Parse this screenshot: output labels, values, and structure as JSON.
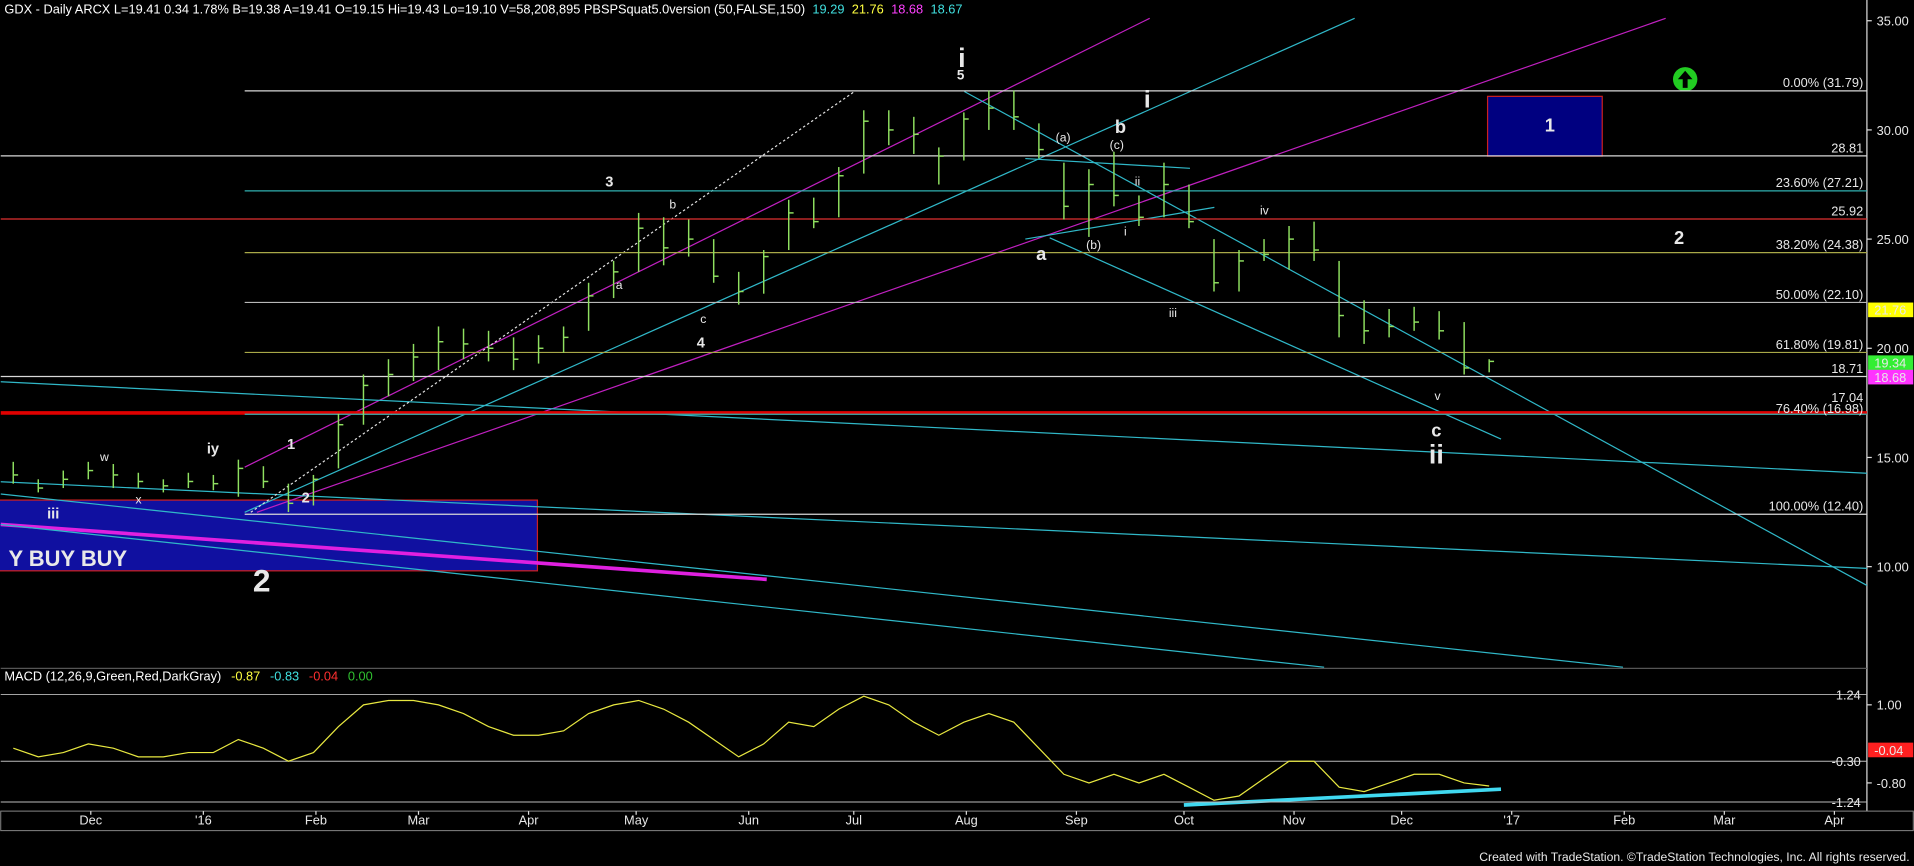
{
  "chart_data": {
    "type": "ohlc",
    "header": [
      {
        "text": "GDX - Daily ARCX L=19.41 0.34 1.78% B=19.38 A=19.41 O=19.15 Hi=19.43 Lo=19.10 V=58,208,895 PBSPSquat5.0version (50,FALSE,150)",
        "color": "#ffffff"
      },
      {
        "text": "19.29",
        "color": "#40e0e0"
      },
      {
        "text": "21.76",
        "color": "#ffff40"
      },
      {
        "text": "18.68",
        "color": "#ff40ff"
      },
      {
        "text": "18.67",
        "color": "#40e0e0"
      }
    ],
    "color": "#8fe060",
    "high": [
      14.8,
      14.0,
      14.4,
      14.8,
      14.7,
      14.3,
      14.0,
      14.3,
      14.2,
      14.9,
      14.6,
      13.8,
      14.2,
      17.0,
      18.8,
      19.5,
      20.2,
      21.0,
      20.9,
      20.8,
      20.5,
      20.6,
      21.0,
      23.0,
      24.0,
      26.2,
      26.0,
      25.9,
      25.0,
      23.5,
      24.5,
      26.8,
      26.9,
      28.3,
      30.9,
      30.9,
      30.6,
      29.2,
      30.8,
      31.8,
      31.8,
      30.3,
      28.5,
      28.2,
      29.0,
      27.0,
      28.5,
      27.5,
      25.0,
      24.5,
      25.0,
      25.6,
      25.8,
      24.0,
      22.2,
      21.8,
      21.9,
      21.7,
      21.2,
      19.5
    ],
    "low": [
      13.8,
      13.4,
      13.6,
      14.0,
      13.6,
      13.6,
      13.4,
      13.6,
      13.5,
      13.2,
      13.6,
      12.5,
      12.8,
      14.5,
      16.5,
      17.8,
      18.5,
      19.0,
      19.5,
      19.4,
      19.0,
      19.3,
      19.8,
      20.8,
      22.3,
      23.5,
      23.8,
      24.2,
      23.0,
      22.0,
      22.5,
      24.5,
      25.5,
      26.0,
      28.0,
      29.3,
      28.9,
      27.5,
      28.6,
      30.0,
      30.0,
      28.7,
      25.9,
      25.1,
      26.5,
      25.6,
      26.0,
      25.5,
      22.6,
      22.6,
      24.0,
      23.6,
      24.0,
      20.5,
      20.2,
      20.5,
      20.8,
      20.4,
      18.8,
      18.9
    ],
    "close": [
      14.2,
      13.6,
      14.0,
      14.4,
      14.2,
      13.9,
      13.7,
      13.9,
      13.8,
      14.5,
      13.9,
      12.9,
      14.0,
      16.5,
      18.3,
      18.8,
      19.6,
      20.3,
      20.2,
      20.0,
      19.5,
      20.0,
      20.5,
      22.4,
      23.5,
      25.5,
      24.6,
      25.0,
      23.3,
      22.6,
      24.2,
      26.2,
      25.8,
      27.9,
      30.4,
      30.0,
      29.8,
      28.8,
      30.5,
      31.0,
      30.6,
      29.1,
      26.5,
      27.5,
      27.0,
      26.0,
      27.5,
      25.8,
      23.0,
      24.0,
      24.3,
      25.0,
      24.5,
      21.5,
      20.8,
      21.0,
      21.2,
      20.8,
      19.1,
      19.4
    ],
    "xlim": [
      0,
      74.6
    ],
    "xticks": [
      {
        "value": 3.6,
        "label": "Dec"
      },
      {
        "value": 8.1,
        "label": "'16"
      },
      {
        "value": 12.6,
        "label": "Feb"
      },
      {
        "value": 16.7,
        "label": "Mar"
      },
      {
        "value": 21.1,
        "label": "Apr"
      },
      {
        "value": 25.4,
        "label": "May"
      },
      {
        "value": 29.9,
        "label": "Jun"
      },
      {
        "value": 34.1,
        "label": "Jul"
      },
      {
        "value": 38.6,
        "label": "Aug"
      },
      {
        "value": 43.0,
        "label": "Sep"
      },
      {
        "value": 47.3,
        "label": "Oct"
      },
      {
        "value": 51.7,
        "label": "Nov"
      },
      {
        "value": 56.0,
        "label": "Dec"
      },
      {
        "value": 60.4,
        "label": "'17"
      },
      {
        "value": 64.9,
        "label": "Feb"
      },
      {
        "value": 68.9,
        "label": "Mar"
      },
      {
        "value": 73.3,
        "label": "Apr"
      }
    ],
    "ylim": [
      5.34,
      35.95
    ],
    "yticks": [
      {
        "value": 35,
        "label": "35.00"
      },
      {
        "value": 30,
        "label": "30.00"
      },
      {
        "value": 25,
        "label": "25.00"
      },
      {
        "value": 20,
        "label": "20.00"
      },
      {
        "value": 15,
        "label": "15.00"
      },
      {
        "value": 10,
        "label": "10.00"
      }
    ],
    "price_markers": [
      {
        "value": 21.76,
        "label": "21.76",
        "color": "#ffff00"
      },
      {
        "value": 19.34,
        "label": "19.34",
        "color": "#33ee33"
      },
      {
        "value": 18.68,
        "label": "18.68",
        "color": "#ff33ff"
      }
    ],
    "levels": [
      {
        "value": 31.79,
        "label": "0.00% (31.79)",
        "color": "#d8d8d8"
      },
      {
        "value": 28.81,
        "label": "28.81",
        "color": "#d8d8d8"
      },
      {
        "value": 27.21,
        "label": "23.60% (27.21)",
        "color": "#30b0b0"
      },
      {
        "value": 25.92,
        "label": "25.92",
        "color": "#e03030"
      },
      {
        "value": 24.38,
        "label": "38.20% (24.38)",
        "color": "#a8a848"
      },
      {
        "value": 22.1,
        "label": "50.00% (22.10)",
        "color": "#b8b8b8"
      },
      {
        "value": 19.81,
        "label": "61.80% (19.81)",
        "color": "#a8a848"
      },
      {
        "value": 18.71,
        "label": "18.71",
        "color": "#d8d8d8"
      },
      {
        "value": 17.04,
        "label": "17.04",
        "color": "#e00000"
      },
      {
        "value": 16.98,
        "label": "76.40% (16.98)",
        "color": "#30b0b0"
      },
      {
        "value": 12.4,
        "label": "100.00% (12.40)",
        "color": "#d8d8d8"
      }
    ],
    "annotations": [
      {
        "text": "i",
        "color": "#22cc22"
      },
      {
        "text": "5",
        "color": "#22cc22"
      },
      {
        "text": "i",
        "color": "#3050ff"
      },
      {
        "text": "b",
        "color": "#22cc22"
      },
      {
        "text": "(a)",
        "color": "#dddddd"
      },
      {
        "text": "(c)",
        "color": "#dddddd"
      },
      {
        "text": "ii",
        "color": "#dddddd"
      },
      {
        "text": "i",
        "color": "#dddddd"
      },
      {
        "text": "(b)",
        "color": "#dddddd"
      },
      {
        "text": "a",
        "color": "#22cc22"
      },
      {
        "text": "3",
        "color": "#22cc22"
      },
      {
        "text": "b",
        "color": "#dddddd"
      },
      {
        "text": "a",
        "color": "#dddddd"
      },
      {
        "text": "c",
        "color": "#dddddd"
      },
      {
        "text": "4",
        "color": "#22cc22"
      },
      {
        "text": "iv",
        "color": "#dddddd"
      },
      {
        "text": "iii",
        "color": "#dddddd"
      },
      {
        "text": "v",
        "color": "#dddddd"
      },
      {
        "text": "c",
        "color": "#22cc22"
      },
      {
        "text": "ii",
        "color": "#22cc22"
      },
      {
        "text": "1",
        "color": "#22cc22"
      },
      {
        "text": "2",
        "color": "#22cc22"
      },
      {
        "text": "iy",
        "color": "#dd33dd"
      },
      {
        "text": "w",
        "color": "#dddddd"
      },
      {
        "text": "x",
        "color": "#dddddd"
      },
      {
        "text": "iii",
        "color": "#dd33dd"
      },
      {
        "text": "2",
        "color": "#22cc22"
      },
      {
        "text": "1",
        "color": "#22cc22"
      },
      {
        "text": "2",
        "color": "#22cc22"
      },
      {
        "text": "Y BUY BUY",
        "color": "#ffff00"
      }
    ],
    "macd": {
      "title": "MACD (12,26,9,Green,Red,DarkGray)",
      "readout": [
        {
          "text": "-0.87",
          "color": "#ffff40"
        },
        {
          "text": "-0.83",
          "color": "#40e0e0"
        },
        {
          "text": "-0.04",
          "color": "#ff3030"
        },
        {
          "text": "0.00",
          "color": "#30c030"
        }
      ],
      "color": "#e8e840",
      "values": [
        0.0,
        -0.2,
        -0.1,
        0.1,
        0.0,
        -0.2,
        -0.2,
        -0.1,
        -0.1,
        0.2,
        0.0,
        -0.3,
        -0.1,
        0.5,
        1.0,
        1.1,
        1.1,
        1.0,
        0.8,
        0.5,
        0.3,
        0.3,
        0.4,
        0.8,
        1.0,
        1.1,
        0.9,
        0.6,
        0.2,
        -0.2,
        0.1,
        0.6,
        0.5,
        0.9,
        1.2,
        1.0,
        0.6,
        0.3,
        0.6,
        0.8,
        0.6,
        0.0,
        -0.6,
        -0.8,
        -0.6,
        -0.8,
        -0.6,
        -0.9,
        -1.2,
        -1.1,
        -0.7,
        -0.3,
        -0.3,
        -0.9,
        -1.0,
        -0.8,
        -0.6,
        -0.6,
        -0.8,
        -0.87
      ],
      "ylim": [
        -1.45,
        1.84
      ],
      "yticks": [
        {
          "value": 1,
          "label": "1.00"
        },
        {
          "value": -0.8,
          "label": "-0.80"
        }
      ],
      "levels": [
        {
          "value": 1.24,
          "label": "1.24"
        },
        {
          "value": -0.3,
          "label": "-0.30"
        },
        {
          "value": -1.24,
          "label": "-1.24"
        }
      ],
      "marker": {
        "value": -0.04,
        "label": "-0.04",
        "color": "#ff2020"
      }
    },
    "footer": "Created with TradeStation. ©TradeStation Technologies, Inc. All rights reserved."
  }
}
